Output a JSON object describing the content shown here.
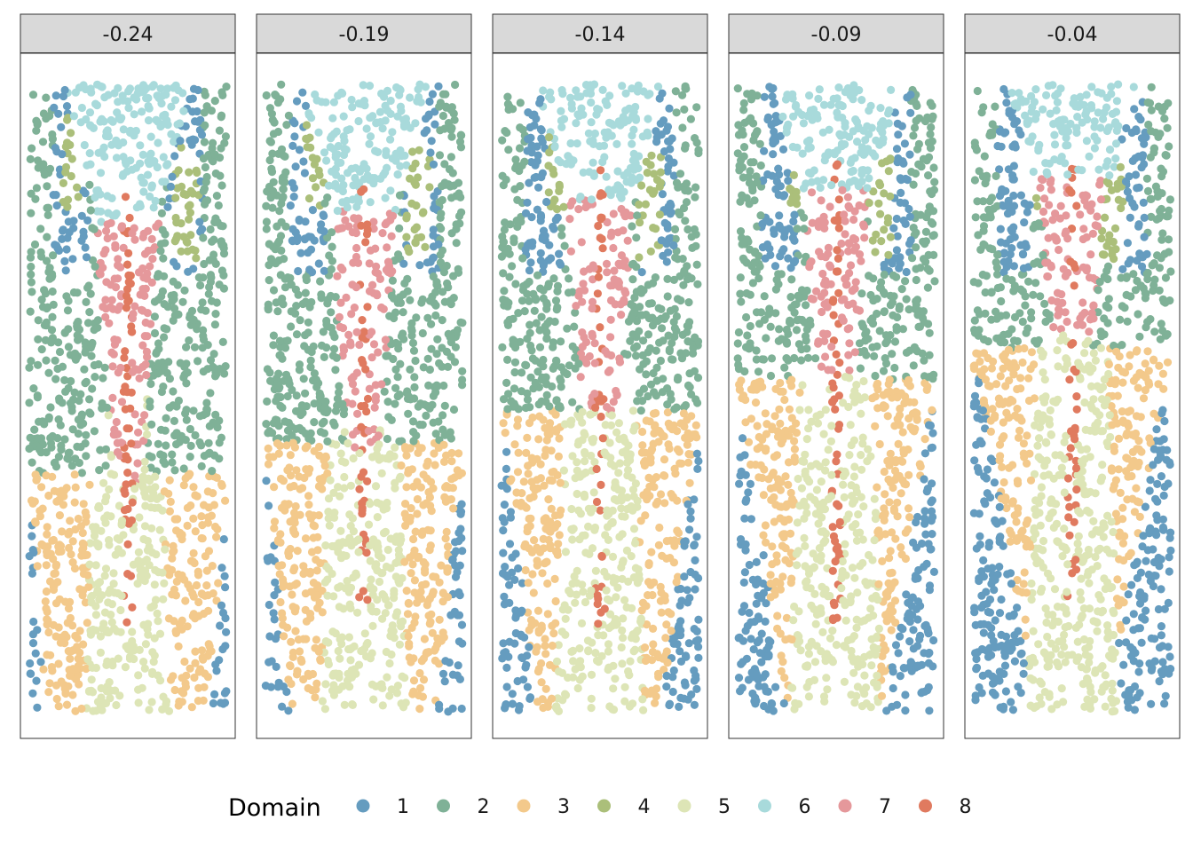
{
  "chart_data": {
    "type": "scatter",
    "description_kind": "faceted spatial scatter, points colored by domain",
    "facets": [
      "-0.24",
      "-0.19",
      "-0.14",
      "-0.09",
      "-0.04"
    ],
    "legend": {
      "title": "Domain",
      "position": "bottom",
      "entries": [
        {
          "label": "1",
          "color": "#659cbf"
        },
        {
          "label": "2",
          "color": "#7fb197"
        },
        {
          "label": "3",
          "color": "#f3c98b"
        },
        {
          "label": "4",
          "color": "#abbf7a"
        },
        {
          "label": "5",
          "color": "#dde5b6"
        },
        {
          "label": "6",
          "color": "#a8dadb"
        },
        {
          "label": "7",
          "color": "#e5989b"
        },
        {
          "label": "8",
          "color": "#e07a5f"
        }
      ]
    },
    "grid": false,
    "axes_visible": false
  }
}
